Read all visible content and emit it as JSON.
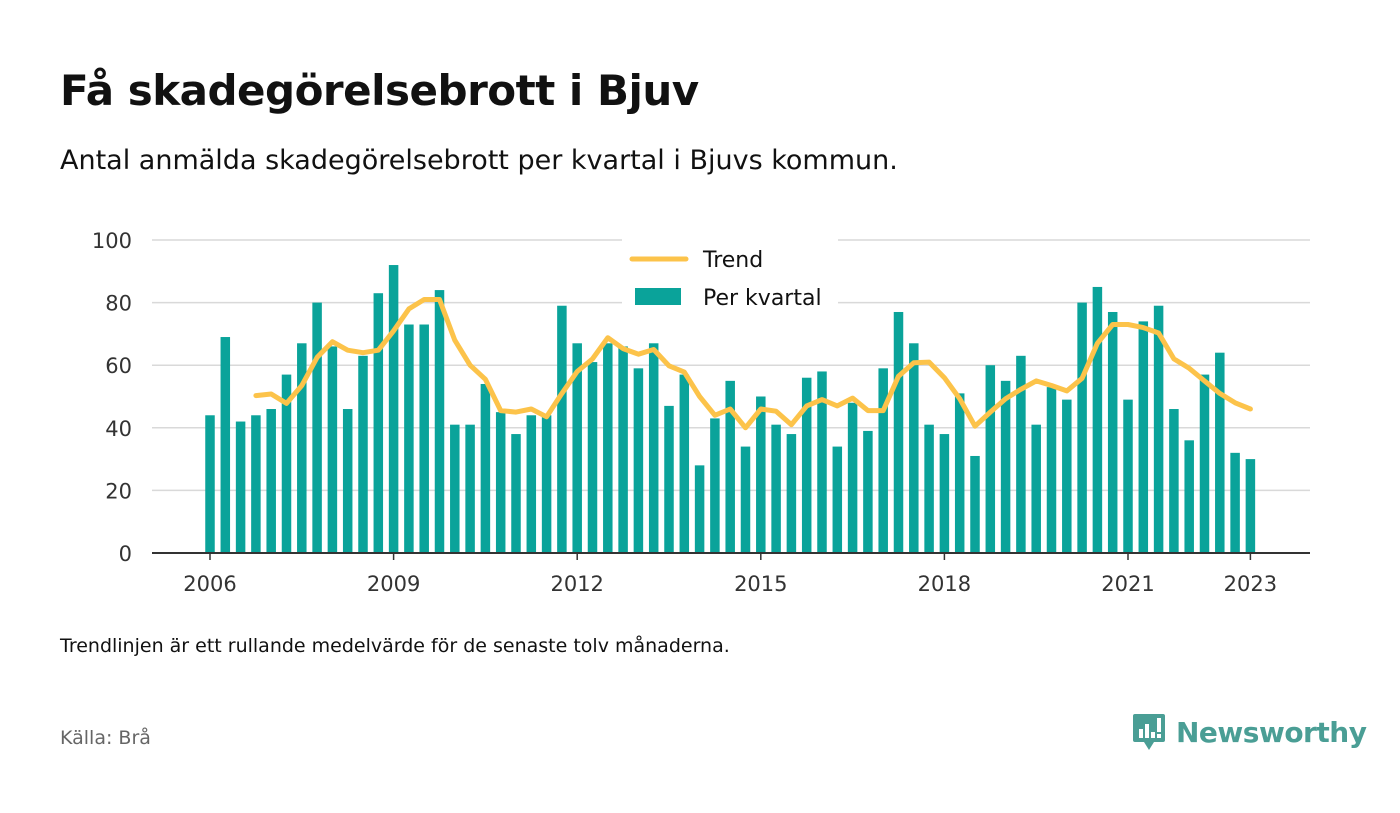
{
  "title": "Få skadegörelsebrott i Bjuv",
  "subtitle": "Antal anmälda skadegörelsebrott per kvartal i Bjuvs kommun.",
  "note": "Trendlinjen är ett rullande medelvärde för de senaste tolv månaderna.",
  "source": "Källa: Brå",
  "brand": {
    "name": "Newsworthy",
    "icon": "newsworthy-logo-icon",
    "color": "#4a9e95"
  },
  "chart_data": {
    "type": "bar",
    "title": "",
    "xlabel": "",
    "ylabel": "",
    "ylim": [
      0,
      100
    ],
    "yticks": [
      0,
      20,
      40,
      60,
      80,
      100
    ],
    "x_tick_labels": [
      "2006",
      "2009",
      "2012",
      "2015",
      "2018",
      "2021",
      "2023"
    ],
    "grid": true,
    "legend_position": "top-center",
    "categories": [
      "2006 Q1",
      "2006 Q2",
      "2006 Q3",
      "2006 Q4",
      "2007 Q1",
      "2007 Q2",
      "2007 Q3",
      "2007 Q4",
      "2008 Q1",
      "2008 Q2",
      "2008 Q3",
      "2008 Q4",
      "2009 Q1",
      "2009 Q2",
      "2009 Q3",
      "2009 Q4",
      "2010 Q1",
      "2010 Q2",
      "2010 Q3",
      "2010 Q4",
      "2011 Q1",
      "2011 Q2",
      "2011 Q3",
      "2011 Q4",
      "2012 Q1",
      "2012 Q2",
      "2012 Q3",
      "2012 Q4",
      "2013 Q1",
      "2013 Q2",
      "2013 Q3",
      "2013 Q4",
      "2014 Q1",
      "2014 Q2",
      "2014 Q3",
      "2014 Q4",
      "2015 Q1",
      "2015 Q2",
      "2015 Q3",
      "2015 Q4",
      "2016 Q1",
      "2016 Q2",
      "2016 Q3",
      "2016 Q4",
      "2017 Q1",
      "2017 Q2",
      "2017 Q3",
      "2017 Q4",
      "2018 Q1",
      "2018 Q2",
      "2018 Q3",
      "2018 Q4",
      "2019 Q1",
      "2019 Q2",
      "2019 Q3",
      "2019 Q4",
      "2020 Q1",
      "2020 Q2",
      "2020 Q3",
      "2020 Q4",
      "2021 Q1",
      "2021 Q2",
      "2021 Q3",
      "2021 Q4",
      "2022 Q1",
      "2022 Q2",
      "2022 Q3",
      "2022 Q4",
      "2023 Q1"
    ],
    "series": [
      {
        "name": "Per kvartal",
        "type": "bar",
        "color": "#0aa39a",
        "values": [
          44,
          69,
          42,
          44,
          46,
          57,
          67,
          80,
          66,
          46,
          63,
          83,
          92,
          73,
          73,
          84,
          41,
          41,
          54,
          45,
          38,
          44,
          44,
          79,
          67,
          61,
          67,
          66,
          59,
          67,
          47,
          57,
          28,
          43,
          55,
          34,
          50,
          41,
          38,
          56,
          58,
          34,
          48,
          39,
          59,
          77,
          67,
          41,
          38,
          51,
          31,
          60,
          55,
          63,
          41,
          53,
          49,
          80,
          85,
          77,
          49,
          74,
          79,
          46,
          36,
          57,
          64,
          32,
          30
        ]
      },
      {
        "name": "Trend",
        "type": "line",
        "color": "#fcc34a",
        "values": [
          null,
          null,
          null,
          50.3,
          50.8,
          47.8,
          53.5,
          62.5,
          67.5,
          64.8,
          64,
          64.8,
          71,
          78,
          81,
          81,
          68,
          60,
          55.5,
          45.5,
          45,
          46,
          43.5,
          51,
          58,
          62,
          68.8,
          65.3,
          63.5,
          65,
          59.8,
          57.8,
          50,
          44,
          46,
          40,
          46,
          45.3,
          41,
          47,
          49,
          47,
          49.5,
          45.5,
          45.5,
          56.5,
          60.8,
          61,
          56,
          49.3,
          40.5,
          45,
          49.3,
          52.3,
          55,
          53.5,
          51.8,
          55.8,
          67,
          73,
          73,
          72,
          70.3,
          62,
          59,
          55,
          51,
          48,
          46
        ]
      }
    ]
  }
}
